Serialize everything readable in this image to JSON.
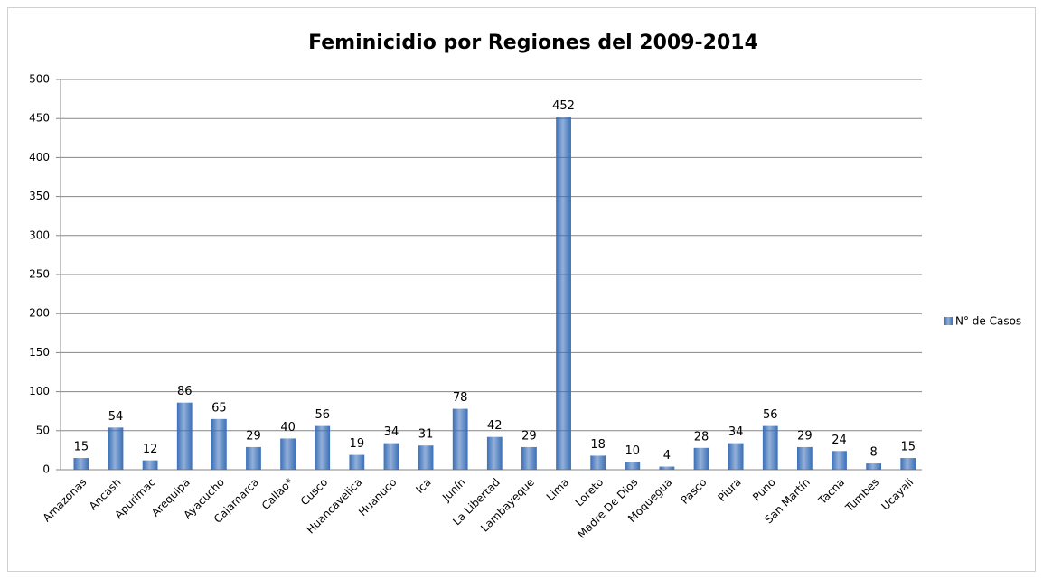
{
  "chart_data": {
    "type": "bar",
    "title": "Feminicidio por Regiones del 2009-2014",
    "categories": [
      "Amazonas",
      "Ancash",
      "Apurimac",
      "Arequipa",
      "Ayacucho",
      "Cajamarca",
      "Callao*",
      "Cusco",
      "Huancavelica",
      "Huánuco",
      "Ica",
      "Junín",
      "La Libertad",
      "Lambayeque",
      "Lima",
      "Loreto",
      "Madre De Dios",
      "Moquegua",
      "Pasco",
      "Piura",
      "Puno",
      "San Martín",
      "Tacna",
      "Tumbes",
      "Ucayali"
    ],
    "series": [
      {
        "name": "N° de Casos",
        "color": "#3a6fb8",
        "values": [
          15,
          54,
          12,
          86,
          65,
          29,
          40,
          56,
          19,
          34,
          31,
          78,
          42,
          29,
          452,
          18,
          10,
          4,
          28,
          34,
          56,
          29,
          24,
          8,
          15
        ]
      }
    ],
    "ylim": [
      0,
      500
    ],
    "yticks": [
      0,
      50,
      100,
      150,
      200,
      250,
      300,
      350,
      400,
      450,
      500
    ],
    "grid": true,
    "legend": "right"
  }
}
